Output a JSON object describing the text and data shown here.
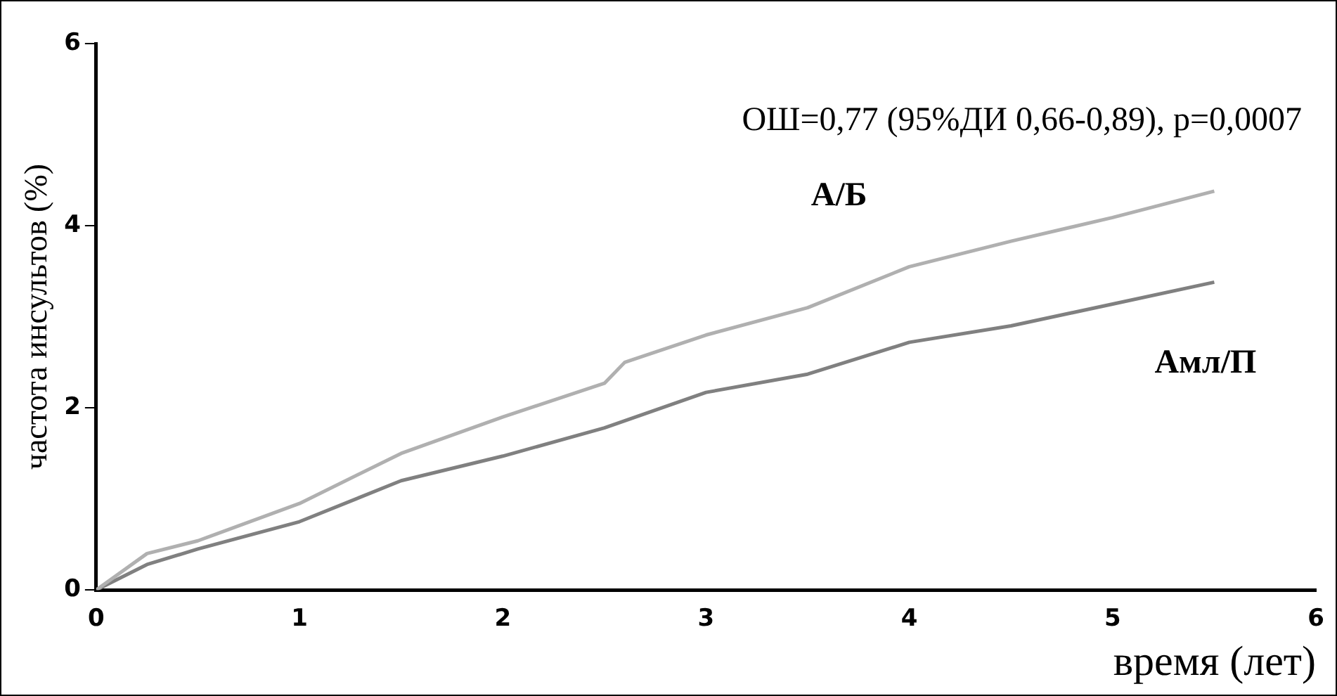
{
  "chart_data": {
    "type": "line",
    "xlabel": "время (лет)",
    "ylabel": "частота инсультов (%)",
    "annotations": [
      "ОШ=0,77 (95%ДИ 0,66-0,89), p=0,0007"
    ],
    "xlim": [
      0,
      6
    ],
    "ylim": [
      0,
      6
    ],
    "xticks": [
      0,
      1,
      2,
      3,
      4,
      5,
      6
    ],
    "yticks": [
      0,
      2,
      4,
      6
    ],
    "grid": false,
    "legend": false,
    "marker": "none",
    "line_style": "solid",
    "series": [
      {
        "name": "А/Б",
        "color": "#b0b0b0",
        "x": [
          0,
          0.25,
          0.5,
          1,
          1.5,
          2,
          2.5,
          2.6,
          3,
          3.5,
          4,
          4.5,
          5,
          5.5
        ],
        "values": [
          0,
          0.4,
          0.54,
          0.95,
          1.5,
          1.9,
          2.27,
          2.5,
          2.8,
          3.1,
          3.55,
          3.83,
          4.09,
          4.38
        ]
      },
      {
        "name": "Амл/П",
        "color": "#808080",
        "x": [
          0,
          0.25,
          0.5,
          1,
          1.5,
          2,
          2.5,
          3,
          3.5,
          4,
          4.5,
          5,
          5.5
        ],
        "values": [
          0,
          0.28,
          0.45,
          0.75,
          1.2,
          1.47,
          1.78,
          2.17,
          2.37,
          2.72,
          2.9,
          3.14,
          3.38
        ]
      }
    ]
  }
}
